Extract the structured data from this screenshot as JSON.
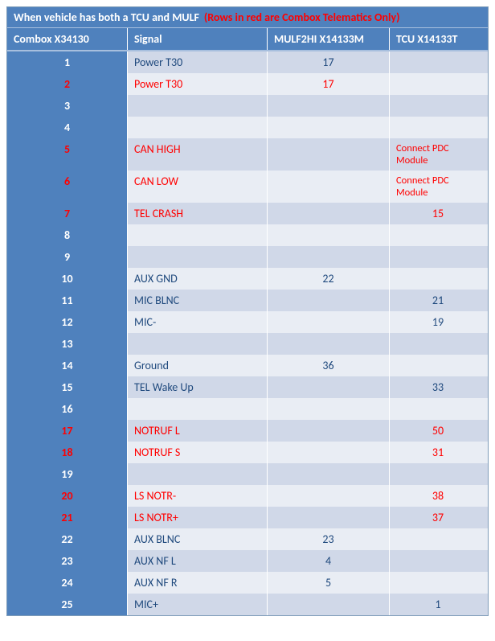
{
  "title": {
    "left": "When vehicle has both a TCU and MULF",
    "right": "(Rows in red are Combox Telematics Only)"
  },
  "columns": [
    "Combox X34130",
    "Signal",
    "MULF2HI X14133M",
    "TCU X14133T"
  ],
  "rows": [
    {
      "n": "1",
      "signal": "Power T30",
      "mulf": "17",
      "tcu": "",
      "red": false
    },
    {
      "n": "2",
      "signal": "Power T30",
      "mulf": "17",
      "tcu": "",
      "red": true
    },
    {
      "n": "3",
      "signal": "",
      "mulf": "",
      "tcu": "",
      "red": false
    },
    {
      "n": "4",
      "signal": "",
      "mulf": "",
      "tcu": "",
      "red": false
    },
    {
      "n": "5",
      "signal": "CAN HIGH",
      "mulf": "",
      "tcu": "Connect PDC Module",
      "red": true,
      "tcuText": true
    },
    {
      "n": "6",
      "signal": "CAN LOW",
      "mulf": "",
      "tcu": "Connect PDC Module",
      "red": true,
      "tcuText": true
    },
    {
      "n": "7",
      "signal": "TEL CRASH",
      "mulf": "",
      "tcu": "15",
      "red": true
    },
    {
      "n": "8",
      "signal": "",
      "mulf": "",
      "tcu": "",
      "red": false
    },
    {
      "n": "9",
      "signal": "",
      "mulf": "",
      "tcu": "",
      "red": false
    },
    {
      "n": "10",
      "signal": "AUX GND",
      "mulf": "22",
      "tcu": "",
      "red": false
    },
    {
      "n": "11",
      "signal": "MIC BLNC",
      "mulf": "",
      "tcu": "21",
      "red": false
    },
    {
      "n": "12",
      "signal": "MIC-",
      "mulf": "",
      "tcu": "19",
      "red": false
    },
    {
      "n": "13",
      "signal": "",
      "mulf": "",
      "tcu": "",
      "red": false
    },
    {
      "n": "14",
      "signal": "Ground",
      "mulf": "36",
      "tcu": "",
      "red": false
    },
    {
      "n": "15",
      "signal": "TEL Wake Up",
      "mulf": "",
      "tcu": "33",
      "red": false
    },
    {
      "n": "16",
      "signal": "",
      "mulf": "",
      "tcu": "",
      "red": false
    },
    {
      "n": "17",
      "signal": "NOTRUF L",
      "mulf": "",
      "tcu": "50",
      "red": true
    },
    {
      "n": "18",
      "signal": "NOTRUF S",
      "mulf": "",
      "tcu": "31",
      "red": true
    },
    {
      "n": "19",
      "signal": "",
      "mulf": "",
      "tcu": "",
      "red": false
    },
    {
      "n": "20",
      "signal": "LS NOTR-",
      "mulf": "",
      "tcu": "38",
      "red": true
    },
    {
      "n": "21",
      "signal": "LS NOTR+",
      "mulf": "",
      "tcu": "37",
      "red": true
    },
    {
      "n": "22",
      "signal": "AUX BLNC",
      "mulf": "23",
      "tcu": "",
      "red": false
    },
    {
      "n": "23",
      "signal": "AUX NF L",
      "mulf": "4",
      "tcu": "",
      "red": false
    },
    {
      "n": "24",
      "signal": "AUX NF R",
      "mulf": "5",
      "tcu": "",
      "red": false
    },
    {
      "n": "25",
      "signal": "MIC+",
      "mulf": "",
      "tcu": "1",
      "red": false
    }
  ],
  "colors": {
    "header_bg": "#4f81bd",
    "row_odd": "#d0d8e8",
    "row_even": "#e9edf4",
    "text_normal": "#1f497d",
    "text_red": "#ff0000",
    "text_white": "#ffffff"
  }
}
